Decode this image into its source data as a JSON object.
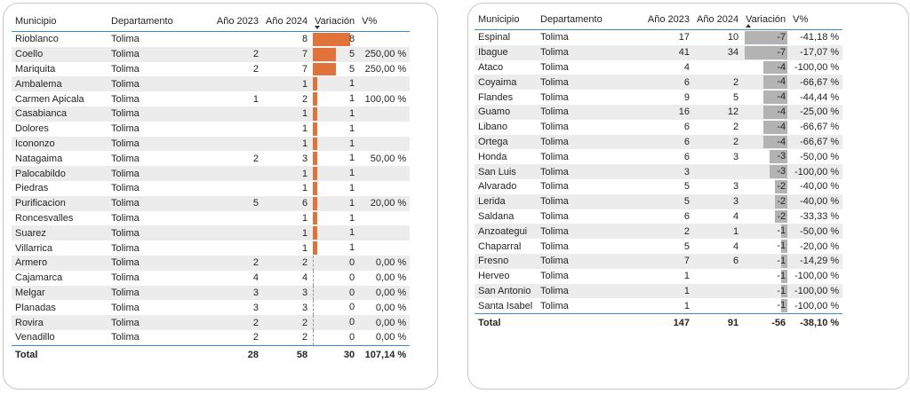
{
  "left_table": {
    "headers": [
      "Municipio",
      "Departamento",
      "Año 2023",
      "Año 2024",
      "Variación",
      "V%"
    ],
    "sort_direction": "descending",
    "bar_color": "#e1723a",
    "rows": [
      {
        "municipio": "Rioblanco",
        "departamento": "Tolima",
        "y2023": "",
        "y2024": "8",
        "variacion": "8",
        "vpct": "",
        "variacion_value": 8
      },
      {
        "municipio": "Coello",
        "departamento": "Tolima",
        "y2023": "2",
        "y2024": "7",
        "variacion": "5",
        "vpct": "250,00 %",
        "variacion_value": 5
      },
      {
        "municipio": "Mariquita",
        "departamento": "Tolima",
        "y2023": "2",
        "y2024": "7",
        "variacion": "5",
        "vpct": "250,00 %",
        "variacion_value": 5
      },
      {
        "municipio": "Ambalema",
        "departamento": "Tolima",
        "y2023": "",
        "y2024": "1",
        "variacion": "1",
        "vpct": "",
        "variacion_value": 1
      },
      {
        "municipio": "Carmen Apicala",
        "departamento": "Tolima",
        "y2023": "1",
        "y2024": "2",
        "variacion": "1",
        "vpct": "100,00 %",
        "variacion_value": 1
      },
      {
        "municipio": "Casabianca",
        "departamento": "Tolima",
        "y2023": "",
        "y2024": "1",
        "variacion": "1",
        "vpct": "",
        "variacion_value": 1
      },
      {
        "municipio": "Dolores",
        "departamento": "Tolima",
        "y2023": "",
        "y2024": "1",
        "variacion": "1",
        "vpct": "",
        "variacion_value": 1
      },
      {
        "municipio": "Icononzo",
        "departamento": "Tolima",
        "y2023": "",
        "y2024": "1",
        "variacion": "1",
        "vpct": "",
        "variacion_value": 1
      },
      {
        "municipio": "Natagaima",
        "departamento": "Tolima",
        "y2023": "2",
        "y2024": "3",
        "variacion": "1",
        "vpct": "50,00 %",
        "variacion_value": 1
      },
      {
        "municipio": "Palocabildo",
        "departamento": "Tolima",
        "y2023": "",
        "y2024": "1",
        "variacion": "1",
        "vpct": "",
        "variacion_value": 1
      },
      {
        "municipio": "Piedras",
        "departamento": "Tolima",
        "y2023": "",
        "y2024": "1",
        "variacion": "1",
        "vpct": "",
        "variacion_value": 1
      },
      {
        "municipio": "Purificacion",
        "departamento": "Tolima",
        "y2023": "5",
        "y2024": "6",
        "variacion": "1",
        "vpct": "20,00 %",
        "variacion_value": 1
      },
      {
        "municipio": "Roncesvalles",
        "departamento": "Tolima",
        "y2023": "",
        "y2024": "1",
        "variacion": "1",
        "vpct": "",
        "variacion_value": 1
      },
      {
        "municipio": "Suarez",
        "departamento": "Tolima",
        "y2023": "",
        "y2024": "1",
        "variacion": "1",
        "vpct": "",
        "variacion_value": 1
      },
      {
        "municipio": "Villarrica",
        "departamento": "Tolima",
        "y2023": "",
        "y2024": "1",
        "variacion": "1",
        "vpct": "",
        "variacion_value": 1
      },
      {
        "municipio": "Armero",
        "departamento": "Tolima",
        "y2023": "2",
        "y2024": "2",
        "variacion": "0",
        "vpct": "0,00 %",
        "variacion_value": 0
      },
      {
        "municipio": "Cajamarca",
        "departamento": "Tolima",
        "y2023": "4",
        "y2024": "4",
        "variacion": "0",
        "vpct": "0,00 %",
        "variacion_value": 0
      },
      {
        "municipio": "Melgar",
        "departamento": "Tolima",
        "y2023": "3",
        "y2024": "3",
        "variacion": "0",
        "vpct": "0,00 %",
        "variacion_value": 0
      },
      {
        "municipio": "Planadas",
        "departamento": "Tolima",
        "y2023": "3",
        "y2024": "3",
        "variacion": "0",
        "vpct": "0,00 %",
        "variacion_value": 0
      },
      {
        "municipio": "Rovira",
        "departamento": "Tolima",
        "y2023": "2",
        "y2024": "2",
        "variacion": "0",
        "vpct": "0,00 %",
        "variacion_value": 0
      },
      {
        "municipio": "Venadillo",
        "departamento": "Tolima",
        "y2023": "2",
        "y2024": "2",
        "variacion": "0",
        "vpct": "0,00 %",
        "variacion_value": 0
      }
    ],
    "total": {
      "label": "Total",
      "y2023": "28",
      "y2024": "58",
      "variacion": "30",
      "vpct": "107,14 %"
    }
  },
  "right_table": {
    "headers": [
      "Municipio",
      "Departamento",
      "Año 2023",
      "Año 2024",
      "Variación",
      "V%"
    ],
    "sort_direction": "ascending",
    "bar_color": "#b3b3b3",
    "rows": [
      {
        "municipio": "Espinal",
        "departamento": "Tolima",
        "y2023": "17",
        "y2024": "10",
        "variacion": "-7",
        "vpct": "-41,18 %",
        "variacion_value": -7
      },
      {
        "municipio": "Ibague",
        "departamento": "Tolima",
        "y2023": "41",
        "y2024": "34",
        "variacion": "-7",
        "vpct": "-17,07 %",
        "variacion_value": -7
      },
      {
        "municipio": "Ataco",
        "departamento": "Tolima",
        "y2023": "4",
        "y2024": "",
        "variacion": "-4",
        "vpct": "-100,00 %",
        "variacion_value": -4
      },
      {
        "municipio": "Coyaima",
        "departamento": "Tolima",
        "y2023": "6",
        "y2024": "2",
        "variacion": "-4",
        "vpct": "-66,67 %",
        "variacion_value": -4
      },
      {
        "municipio": "Flandes",
        "departamento": "Tolima",
        "y2023": "9",
        "y2024": "5",
        "variacion": "-4",
        "vpct": "-44,44 %",
        "variacion_value": -4
      },
      {
        "municipio": "Guamo",
        "departamento": "Tolima",
        "y2023": "16",
        "y2024": "12",
        "variacion": "-4",
        "vpct": "-25,00 %",
        "variacion_value": -4
      },
      {
        "municipio": "Libano",
        "departamento": "Tolima",
        "y2023": "6",
        "y2024": "2",
        "variacion": "-4",
        "vpct": "-66,67 %",
        "variacion_value": -4
      },
      {
        "municipio": "Ortega",
        "departamento": "Tolima",
        "y2023": "6",
        "y2024": "2",
        "variacion": "-4",
        "vpct": "-66,67 %",
        "variacion_value": -4
      },
      {
        "municipio": "Honda",
        "departamento": "Tolima",
        "y2023": "6",
        "y2024": "3",
        "variacion": "-3",
        "vpct": "-50,00 %",
        "variacion_value": -3
      },
      {
        "municipio": "San Luis",
        "departamento": "Tolima",
        "y2023": "3",
        "y2024": "",
        "variacion": "-3",
        "vpct": "-100,00 %",
        "variacion_value": -3
      },
      {
        "municipio": "Alvarado",
        "departamento": "Tolima",
        "y2023": "5",
        "y2024": "3",
        "variacion": "-2",
        "vpct": "-40,00 %",
        "variacion_value": -2
      },
      {
        "municipio": "Lerida",
        "departamento": "Tolima",
        "y2023": "5",
        "y2024": "3",
        "variacion": "-2",
        "vpct": "-40,00 %",
        "variacion_value": -2
      },
      {
        "municipio": "Saldana",
        "departamento": "Tolima",
        "y2023": "6",
        "y2024": "4",
        "variacion": "-2",
        "vpct": "-33,33 %",
        "variacion_value": -2
      },
      {
        "municipio": "Anzoategui",
        "departamento": "Tolima",
        "y2023": "2",
        "y2024": "1",
        "variacion": "-1",
        "vpct": "-50,00 %",
        "variacion_value": -1
      },
      {
        "municipio": "Chaparral",
        "departamento": "Tolima",
        "y2023": "5",
        "y2024": "4",
        "variacion": "-1",
        "vpct": "-20,00 %",
        "variacion_value": -1
      },
      {
        "municipio": "Fresno",
        "departamento": "Tolima",
        "y2023": "7",
        "y2024": "6",
        "variacion": "-1",
        "vpct": "-14,29 %",
        "variacion_value": -1
      },
      {
        "municipio": "Herveo",
        "departamento": "Tolima",
        "y2023": "1",
        "y2024": "",
        "variacion": "-1",
        "vpct": "-100,00 %",
        "variacion_value": -1
      },
      {
        "municipio": "San Antonio",
        "departamento": "Tolima",
        "y2023": "1",
        "y2024": "",
        "variacion": "-1",
        "vpct": "-100,00 %",
        "variacion_value": -1
      },
      {
        "municipio": "Santa Isabel",
        "departamento": "Tolima",
        "y2023": "1",
        "y2024": "",
        "variacion": "-1",
        "vpct": "-100,00 %",
        "variacion_value": -1
      }
    ],
    "total": {
      "label": "Total",
      "y2023": "147",
      "y2024": "91",
      "variacion": "-56",
      "vpct": "-38,10 %"
    }
  }
}
